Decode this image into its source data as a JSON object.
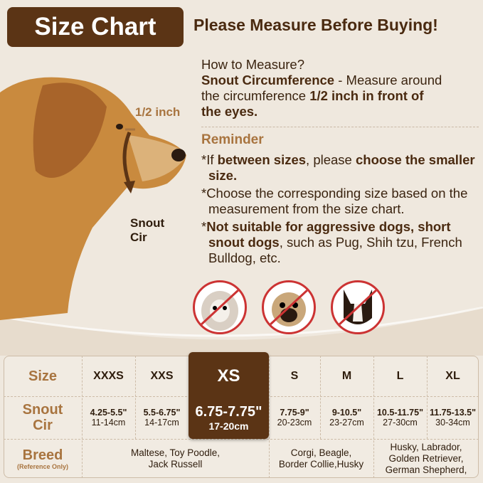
{
  "title": "Size Chart",
  "headline": "Please Measure Before Buying!",
  "how_to": {
    "heading": "How to Measure?",
    "term": "Snout Circumference",
    "text1": " - Measure around",
    "text2": "the circumference ",
    "bold1": "1/2 inch in front of",
    "bold2": "the eyes."
  },
  "reminder": {
    "title": "Reminder",
    "r1_a": "*If ",
    "r1_b": "between sizes",
    "r1_c": ", please ",
    "r1_d": "choose the smaller size",
    ".": ".",
    "r1_e": ".",
    "r2": "*Choose the corresponding size based on the measurement from the size chart.",
    "r3_a": "*",
    "r3_b": "Not suitable for aggressive dogs, short snout dogs",
    "r3_c": ", such as Pug, Shih tzu, French Bulldog, etc."
  },
  "diagram": {
    "half_inch": "1/2 inch",
    "snout_cir_1": "Snout",
    "snout_cir_2": "Cir"
  },
  "colors": {
    "brown": "#5b3415",
    "tan": "#a8743f",
    "prohibit": "#cc3333",
    "background": "#efe8de"
  },
  "not_suitable_dogs": [
    "shih-tzu",
    "pug",
    "french-bulldog"
  ],
  "table": {
    "row_labels": {
      "size": "Size",
      "snout_1": "Snout",
      "snout_2": "Cir",
      "breed": "Breed",
      "breed_note": "(Reference Only)"
    },
    "sizes": [
      {
        "size": "XXXS",
        "inch": "4.25-5.5\"",
        "cm": "11-14cm"
      },
      {
        "size": "XXS",
        "inch": "5.5-6.75\"",
        "cm": "14-17cm"
      },
      {
        "size": "XS",
        "inch": "6.75-7.75\"",
        "cm": "17-20cm",
        "highlighted": true
      },
      {
        "size": "S",
        "inch": "7.75-9\"",
        "cm": "20-23cm"
      },
      {
        "size": "M",
        "inch": "9-10.5\"",
        "cm": "23-27cm"
      },
      {
        "size": "L",
        "inch": "10.5-11.75\"",
        "cm": "27-30cm"
      },
      {
        "size": "XL",
        "inch": "11.75-13.5\"",
        "cm": "30-34cm"
      }
    ],
    "breeds": [
      {
        "l1": "Maltese, Toy Poodle,",
        "l2": "Jack Russell"
      },
      {
        "l1": "Corgi, Beagle,",
        "l2": "Border Collie,Husky"
      },
      {
        "l1": "Husky, Labrador,",
        "l2": "Golden Retriever,",
        "l3": "German Shepherd,"
      }
    ]
  }
}
